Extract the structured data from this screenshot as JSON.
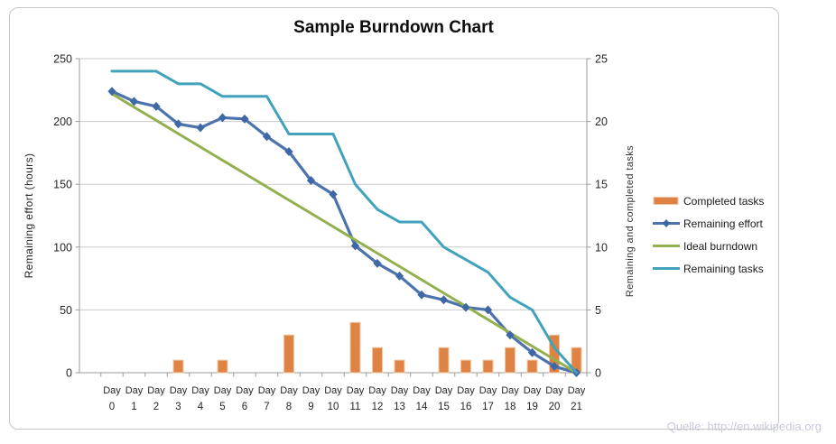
{
  "chart_data": {
    "type": "combo",
    "title": "Sample Burndown Chart",
    "x_prefix": "Day",
    "categories": [
      0,
      1,
      2,
      3,
      4,
      5,
      6,
      7,
      8,
      9,
      10,
      11,
      12,
      13,
      14,
      15,
      16,
      17,
      18,
      19,
      20,
      21
    ],
    "series": [
      {
        "name": "Completed tasks",
        "type": "bar",
        "axis": "right",
        "color": "#de8344",
        "edge_color": "#efc9a6",
        "values": [
          0,
          0,
          0,
          1,
          0,
          1,
          0,
          0,
          3,
          0,
          0,
          4,
          2,
          1,
          0,
          2,
          1,
          1,
          2,
          1,
          3,
          2
        ]
      },
      {
        "name": "Remaining effort",
        "type": "line-diamond",
        "axis": "left",
        "color": "#4c73ae",
        "marker_color": "#3e67a6",
        "values": [
          224,
          216,
          212,
          198,
          195,
          203,
          202,
          188,
          176,
          153,
          142,
          101,
          87,
          77,
          62,
          58,
          52,
          50,
          30,
          16,
          5,
          0
        ]
      },
      {
        "name": "Ideal burndown",
        "type": "line",
        "axis": "left",
        "color": "#94b04e",
        "values": [
          222,
          211.4,
          200.9,
          190.3,
          179.7,
          169.1,
          158.6,
          148,
          137.4,
          126.9,
          116.3,
          105.7,
          95.1,
          84.6,
          74,
          63.4,
          52.9,
          42.3,
          31.7,
          21.1,
          10.6,
          0
        ]
      },
      {
        "name": "Remaining tasks",
        "type": "line",
        "axis": "right",
        "color": "#41a3bb",
        "values": [
          24,
          24,
          24,
          23,
          23,
          22,
          22,
          22,
          19,
          19,
          19,
          15,
          13,
          12,
          12,
          10,
          9,
          8,
          6,
          5,
          2,
          0
        ]
      }
    ],
    "left_axis": {
      "title": "Remaining effort (hours)",
      "ticks": [
        0,
        50,
        100,
        150,
        200,
        250
      ],
      "range": [
        0,
        250
      ]
    },
    "right_axis": {
      "title": "Remaining and completed tasks",
      "ticks": [
        0,
        5,
        10,
        15,
        20,
        25
      ],
      "range": [
        0,
        25
      ]
    },
    "grid": true,
    "legend_position": "right",
    "colors": {
      "gridline": "#c9c9c9",
      "axis_line": "#9b9b9b",
      "tick_text": "#262626"
    }
  },
  "footer": {
    "source": "Quelle: http://en.wikipedia.org"
  }
}
